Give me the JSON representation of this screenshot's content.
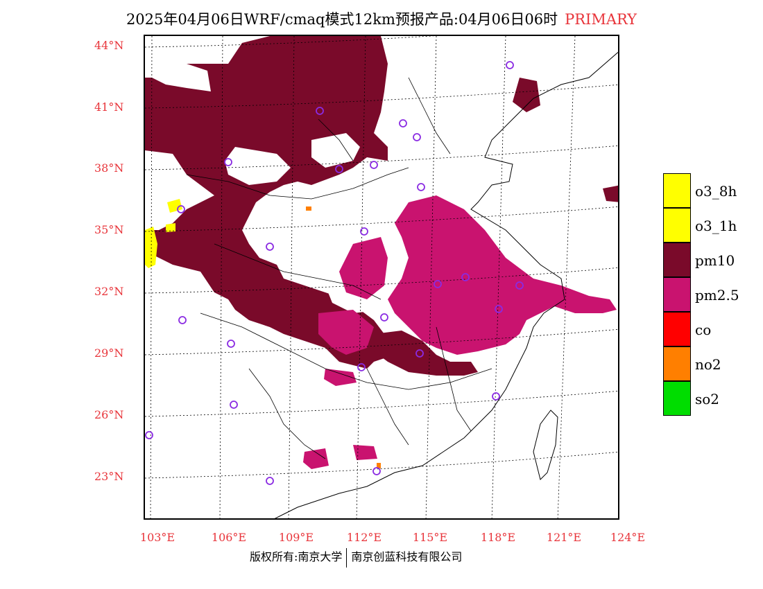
{
  "title": {
    "text": "2025年04月06日WRF/cmaq模式12km预报产品:04月06日06时",
    "tag": "PRIMARY"
  },
  "map": {
    "lat_labels": [
      "44°N",
      "41°N",
      "38°N",
      "35°N",
      "32°N",
      "29°N",
      "26°N",
      "23°N"
    ],
    "lon_labels": [
      "103°E",
      "106°E",
      "109°E",
      "112°E",
      "115°E",
      "118°E",
      "121°E",
      "124°E"
    ],
    "colors": {
      "pm10": "#7a0a2a",
      "pm25": "#c9136f",
      "o3": "#ffff00",
      "no2": "#ff7f00",
      "station": "#8a2be2",
      "grid": "#000000",
      "label": "#e8343a"
    }
  },
  "legend": {
    "items": [
      {
        "label": "o3_8h",
        "color": "#ffff00"
      },
      {
        "label": "o3_1h",
        "color": "#ffff00"
      },
      {
        "label": "pm10",
        "color": "#7a0a2a"
      },
      {
        "label": "pm2.5",
        "color": "#c9136f"
      },
      {
        "label": "co",
        "color": "#ff0000"
      },
      {
        "label": "no2",
        "color": "#ff7f00"
      },
      {
        "label": "so2",
        "color": "#00dd00"
      }
    ]
  },
  "footer": {
    "left": "版权所有:南京大学",
    "right": "南京创蓝科技有限公司"
  }
}
